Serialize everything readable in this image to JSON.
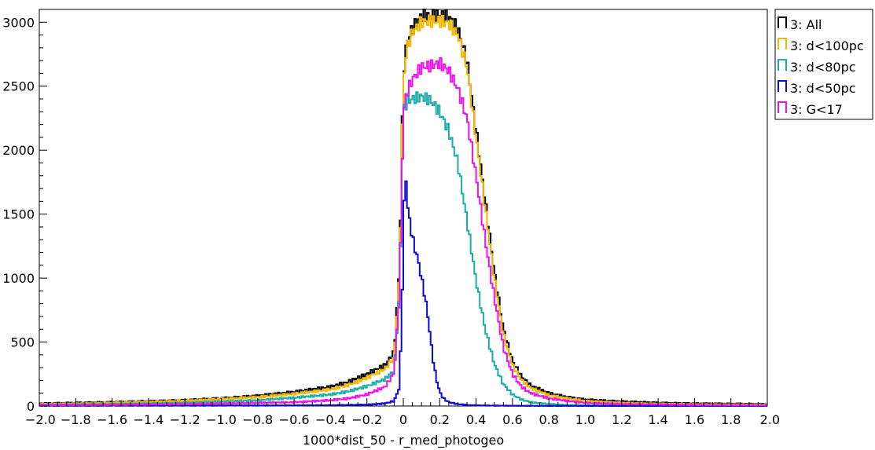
{
  "chart_data": {
    "type": "histogram-step",
    "xlabel": "1000*dist_50 - r_med_photogeo",
    "ylabel": "",
    "xlim": [
      -2.0,
      2.0
    ],
    "ylim": [
      0,
      3100
    ],
    "x_ticks": [
      -2.0,
      -1.8,
      -1.6,
      -1.4,
      -1.2,
      -1.0,
      -0.8,
      -0.6,
      -0.4,
      -0.2,
      0,
      0.2,
      0.4,
      0.6,
      0.8,
      1.0,
      1.2,
      1.4,
      1.6,
      1.8,
      2.0
    ],
    "x_tick_labels": [
      "−2.0",
      "−1.8",
      "−1.6",
      "−1.4",
      "−1.2",
      "−1.0",
      "−0.8",
      "−0.6",
      "−0.4",
      "−0.2",
      "0",
      "0.2",
      "0.4",
      "0.6",
      "0.8",
      "1.0",
      "1.2",
      "1.4",
      "1.6",
      "1.8",
      "2.0"
    ],
    "y_ticks": [
      0,
      500,
      1000,
      1500,
      2000,
      2500,
      3000
    ],
    "y_tick_labels": [
      "0",
      "500",
      "1000",
      "1500",
      "2000",
      "2500",
      "3000"
    ],
    "legend_position": "outside-top-right",
    "series": [
      {
        "name": "3: All",
        "color": "#000000",
        "x": [
          -2.0,
          -1.6,
          -1.2,
          -1.0,
          -0.8,
          -0.6,
          -0.4,
          -0.3,
          -0.2,
          -0.1,
          -0.05,
          -0.02,
          0.0,
          0.02,
          0.05,
          0.1,
          0.15,
          0.2,
          0.25,
          0.3,
          0.35,
          0.4,
          0.45,
          0.5,
          0.55,
          0.6,
          0.65,
          0.7,
          0.8,
          0.9,
          1.0,
          1.2,
          1.4,
          1.6,
          2.0
        ],
        "y": [
          20,
          30,
          45,
          60,
          80,
          110,
          150,
          190,
          250,
          320,
          420,
          1100,
          2600,
          2850,
          2950,
          3050,
          3050,
          3060,
          3040,
          2950,
          2700,
          2150,
          1600,
          1050,
          600,
          350,
          230,
          160,
          100,
          70,
          50,
          35,
          25,
          20,
          15
        ]
      },
      {
        "name": "3: d<100pc",
        "color": "#f5b800",
        "x": [
          -2.0,
          -1.6,
          -1.2,
          -1.0,
          -0.8,
          -0.6,
          -0.4,
          -0.3,
          -0.2,
          -0.1,
          -0.05,
          -0.02,
          0.0,
          0.02,
          0.05,
          0.1,
          0.15,
          0.2,
          0.25,
          0.3,
          0.35,
          0.4,
          0.45,
          0.5,
          0.55,
          0.6,
          0.65,
          0.7,
          0.8,
          0.9,
          1.0,
          1.2,
          1.4,
          1.6,
          2.0
        ],
        "y": [
          15,
          25,
          40,
          55,
          70,
          95,
          130,
          165,
          220,
          290,
          380,
          1050,
          2550,
          2800,
          2920,
          3000,
          3010,
          3010,
          2990,
          2900,
          2650,
          2100,
          1550,
          1000,
          560,
          320,
          200,
          140,
          85,
          60,
          40,
          25,
          18,
          14,
          10
        ]
      },
      {
        "name": "3: d<80pc",
        "color": "#1aada6",
        "x": [
          -2.0,
          -1.6,
          -1.2,
          -1.0,
          -0.8,
          -0.6,
          -0.4,
          -0.3,
          -0.2,
          -0.1,
          -0.05,
          -0.02,
          0.0,
          0.02,
          0.05,
          0.1,
          0.15,
          0.2,
          0.25,
          0.3,
          0.35,
          0.4,
          0.45,
          0.5,
          0.55,
          0.6,
          0.65,
          0.7,
          0.8,
          0.9,
          1.0,
          1.2,
          1.6,
          2.0
        ],
        "y": [
          10,
          15,
          25,
          35,
          45,
          65,
          90,
          115,
          155,
          210,
          280,
          900,
          2300,
          2380,
          2400,
          2420,
          2390,
          2300,
          2150,
          1900,
          1450,
          980,
          600,
          330,
          170,
          90,
          50,
          30,
          15,
          8,
          5,
          3,
          2,
          1
        ]
      },
      {
        "name": "3: d<50pc",
        "color": "#0a0ad2",
        "x": [
          -2.0,
          -1.2,
          -0.8,
          -0.4,
          -0.2,
          -0.1,
          -0.05,
          -0.02,
          0.0,
          0.01,
          0.02,
          0.04,
          0.06,
          0.08,
          0.1,
          0.12,
          0.14,
          0.16,
          0.18,
          0.2,
          0.22,
          0.25,
          0.3,
          0.35,
          0.4,
          0.5,
          0.6,
          0.8,
          2.0
        ],
        "y": [
          2,
          3,
          4,
          6,
          10,
          20,
          40,
          150,
          1200,
          1950,
          1600,
          1400,
          1250,
          1150,
          1000,
          850,
          650,
          400,
          220,
          110,
          60,
          30,
          15,
          8,
          5,
          3,
          2,
          1,
          0
        ]
      },
      {
        "name": "3: G<17",
        "color": "#ee10ee",
        "x": [
          -2.0,
          -1.6,
          -1.2,
          -1.0,
          -0.8,
          -0.6,
          -0.4,
          -0.3,
          -0.2,
          -0.1,
          -0.05,
          -0.02,
          0.0,
          0.02,
          0.05,
          0.1,
          0.15,
          0.2,
          0.25,
          0.3,
          0.35,
          0.4,
          0.45,
          0.5,
          0.55,
          0.6,
          0.65,
          0.7,
          0.8,
          0.9,
          1.0,
          1.2,
          1.6,
          2.0
        ],
        "y": [
          8,
          10,
          15,
          20,
          25,
          30,
          45,
          60,
          90,
          150,
          260,
          900,
          2300,
          2450,
          2550,
          2650,
          2660,
          2680,
          2620,
          2480,
          2250,
          1800,
          1300,
          850,
          460,
          250,
          150,
          100,
          60,
          40,
          25,
          15,
          8,
          5
        ]
      }
    ]
  }
}
